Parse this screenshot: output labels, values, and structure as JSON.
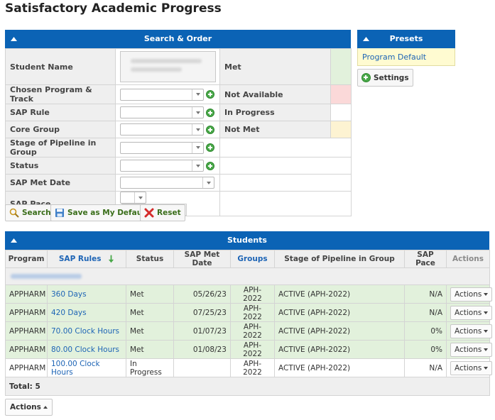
{
  "page": {
    "title": "Satisfactory Academic Progress"
  },
  "search_panel": {
    "title": "Search & Order",
    "fields": [
      {
        "label": "Student Name"
      },
      {
        "label": "Chosen Program & Track"
      },
      {
        "label": "SAP Rule"
      },
      {
        "label": "Core Group"
      },
      {
        "label": "Stage of Pipeline in Group"
      },
      {
        "label": "Status"
      },
      {
        "label": "SAP Met Date"
      },
      {
        "label": "SAP Pace"
      }
    ],
    "legend": [
      {
        "label": "Met",
        "color": "#e2f1dc"
      },
      {
        "label": "Not Available",
        "color": "#fbd9d9"
      },
      {
        "label": "In Progress",
        "color": "#ffffff"
      },
      {
        "label": "Not Met",
        "color": "#fdf3d2"
      }
    ],
    "buttons": {
      "search": "Search",
      "save_default": "Save as My Default",
      "reset": "Reset"
    }
  },
  "presets_panel": {
    "title": "Presets",
    "items": [
      "Program Default"
    ],
    "settings_label": "Settings"
  },
  "students_panel": {
    "title": "Students",
    "columns": [
      "Program",
      "SAP Rules",
      "Status",
      "SAP Met Date",
      "Groups",
      "Stage of Pipeline in Group",
      "SAP Pace",
      "Actions"
    ],
    "rows": [
      {
        "program": "APPHARM",
        "rule": "360 Days",
        "status": "Met",
        "met_date": "05/26/23",
        "group": "APH-2022",
        "stage": "ACTIVE (APH-2022)",
        "pace": "N/A",
        "action": "Actions"
      },
      {
        "program": "APPHARM",
        "rule": "420 Days",
        "status": "Met",
        "met_date": "07/25/23",
        "group": "APH-2022",
        "stage": "ACTIVE (APH-2022)",
        "pace": "N/A",
        "action": "Actions"
      },
      {
        "program": "APPHARM",
        "rule": "70.00 Clock Hours",
        "status": "Met",
        "met_date": "01/07/23",
        "group": "APH-2022",
        "stage": "ACTIVE (APH-2022)",
        "pace": "0%",
        "action": "Actions"
      },
      {
        "program": "APPHARM",
        "rule": "80.00 Clock Hours",
        "status": "Met",
        "met_date": "01/08/23",
        "group": "APH-2022",
        "stage": "ACTIVE (APH-2022)",
        "pace": "0%",
        "action": "Actions"
      },
      {
        "program": "APPHARM",
        "rule": "100.00 Clock Hours",
        "status": "In Progress",
        "met_date": "",
        "group": "APH-2022",
        "stage": "ACTIVE (APH-2022)",
        "pace": "N/A",
        "action": "Actions"
      }
    ],
    "total": "Total: 5"
  },
  "bottom": {
    "actions_label": "Actions"
  }
}
